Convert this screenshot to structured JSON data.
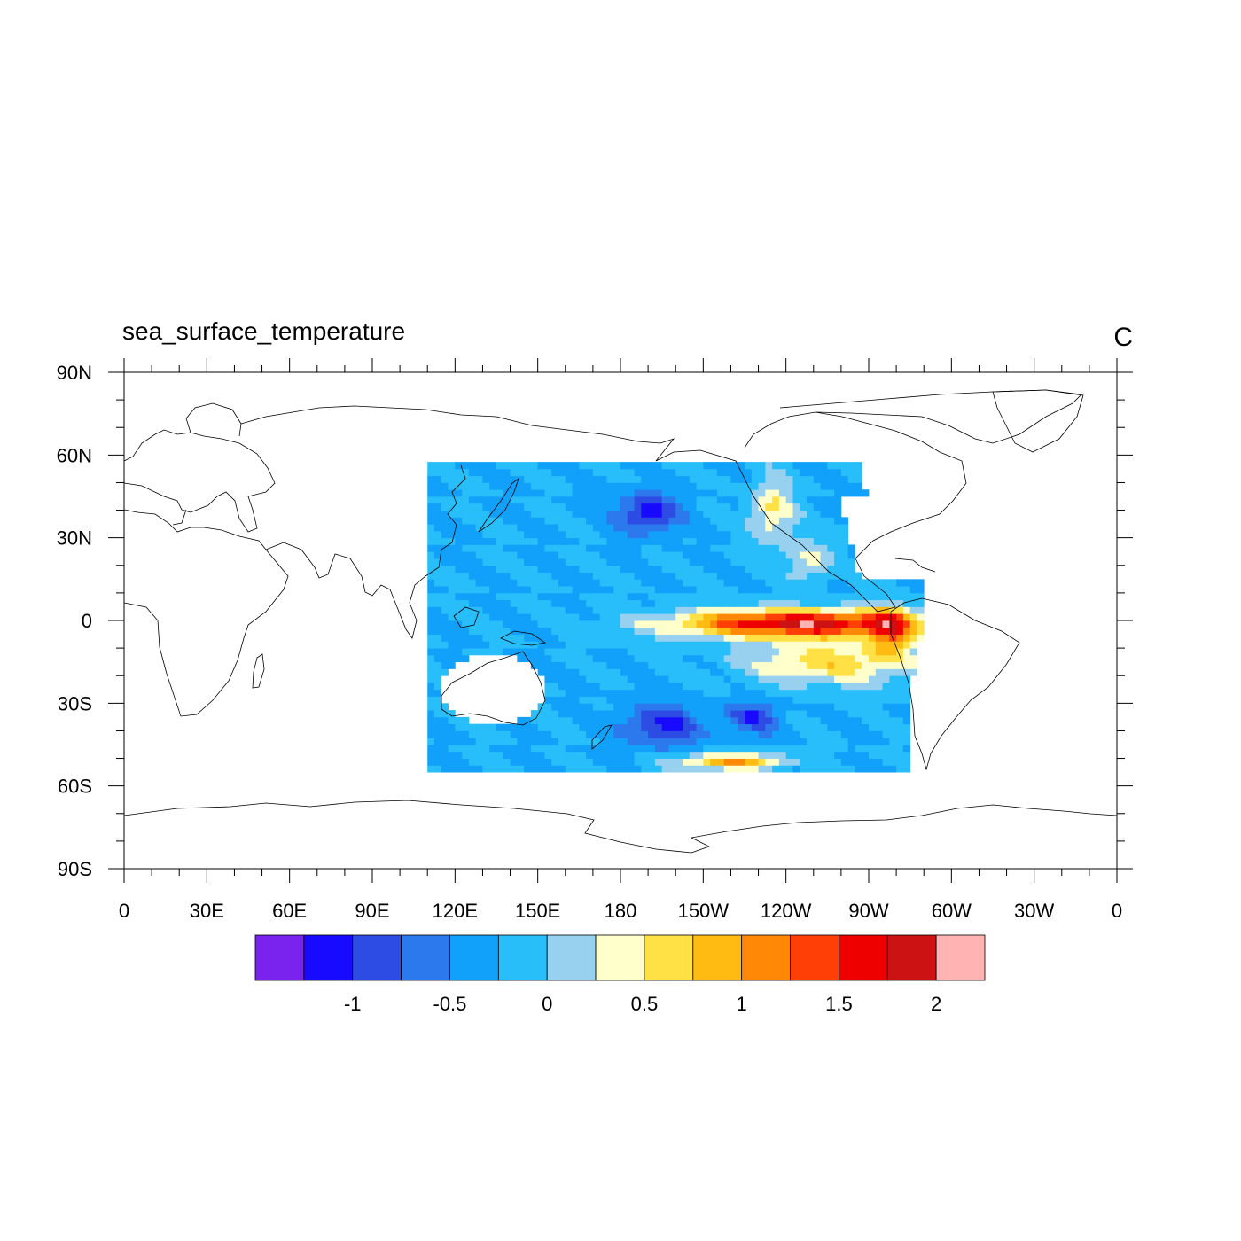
{
  "title_left": "sea_surface_temperature",
  "title_right": "C",
  "map": {
    "lon_range": [
      0,
      360
    ],
    "lat_range": [
      -90,
      90
    ],
    "region_lon": [
      110,
      290
    ],
    "region_lat": [
      -55,
      60
    ],
    "lat_ticks": [
      {
        "value": 90,
        "label": "90N"
      },
      {
        "value": 60,
        "label": "60N"
      },
      {
        "value": 30,
        "label": "30N"
      },
      {
        "value": 0,
        "label": "0"
      },
      {
        "value": -30,
        "label": "30S"
      },
      {
        "value": -60,
        "label": "60S"
      },
      {
        "value": -90,
        "label": "90S"
      }
    ],
    "lon_ticks": [
      {
        "value": 0,
        "label": "0"
      },
      {
        "value": 30,
        "label": "30E"
      },
      {
        "value": 60,
        "label": "60E"
      },
      {
        "value": 90,
        "label": "90E"
      },
      {
        "value": 120,
        "label": "120E"
      },
      {
        "value": 150,
        "label": "150E"
      },
      {
        "value": 180,
        "label": "180"
      },
      {
        "value": 210,
        "label": "150W"
      },
      {
        "value": 240,
        "label": "120W"
      },
      {
        "value": 270,
        "label": "90W"
      },
      {
        "value": 300,
        "label": "60W"
      },
      {
        "value": 330,
        "label": "30W"
      },
      {
        "value": 360,
        "label": "0"
      }
    ]
  },
  "colorbar": {
    "colors": [
      "#7a22ee",
      "#1809ff",
      "#2d4ce3",
      "#2b79ec",
      "#11a0fa",
      "#27befa",
      "#98d1ef",
      "#ffffcc",
      "#ffe145",
      "#ffbb12",
      "#ff8806",
      "#ff3f06",
      "#ee0000",
      "#cc1212",
      "#ffb3b3"
    ],
    "labels": [
      {
        "index": 2,
        "text": "-1"
      },
      {
        "index": 4,
        "text": "-0.5"
      },
      {
        "index": 6,
        "text": "0"
      },
      {
        "index": 8,
        "text": "0.5"
      },
      {
        "index": 10,
        "text": "1"
      },
      {
        "index": 12,
        "text": "1.5"
      },
      {
        "index": 14,
        "text": "2"
      }
    ]
  }
}
